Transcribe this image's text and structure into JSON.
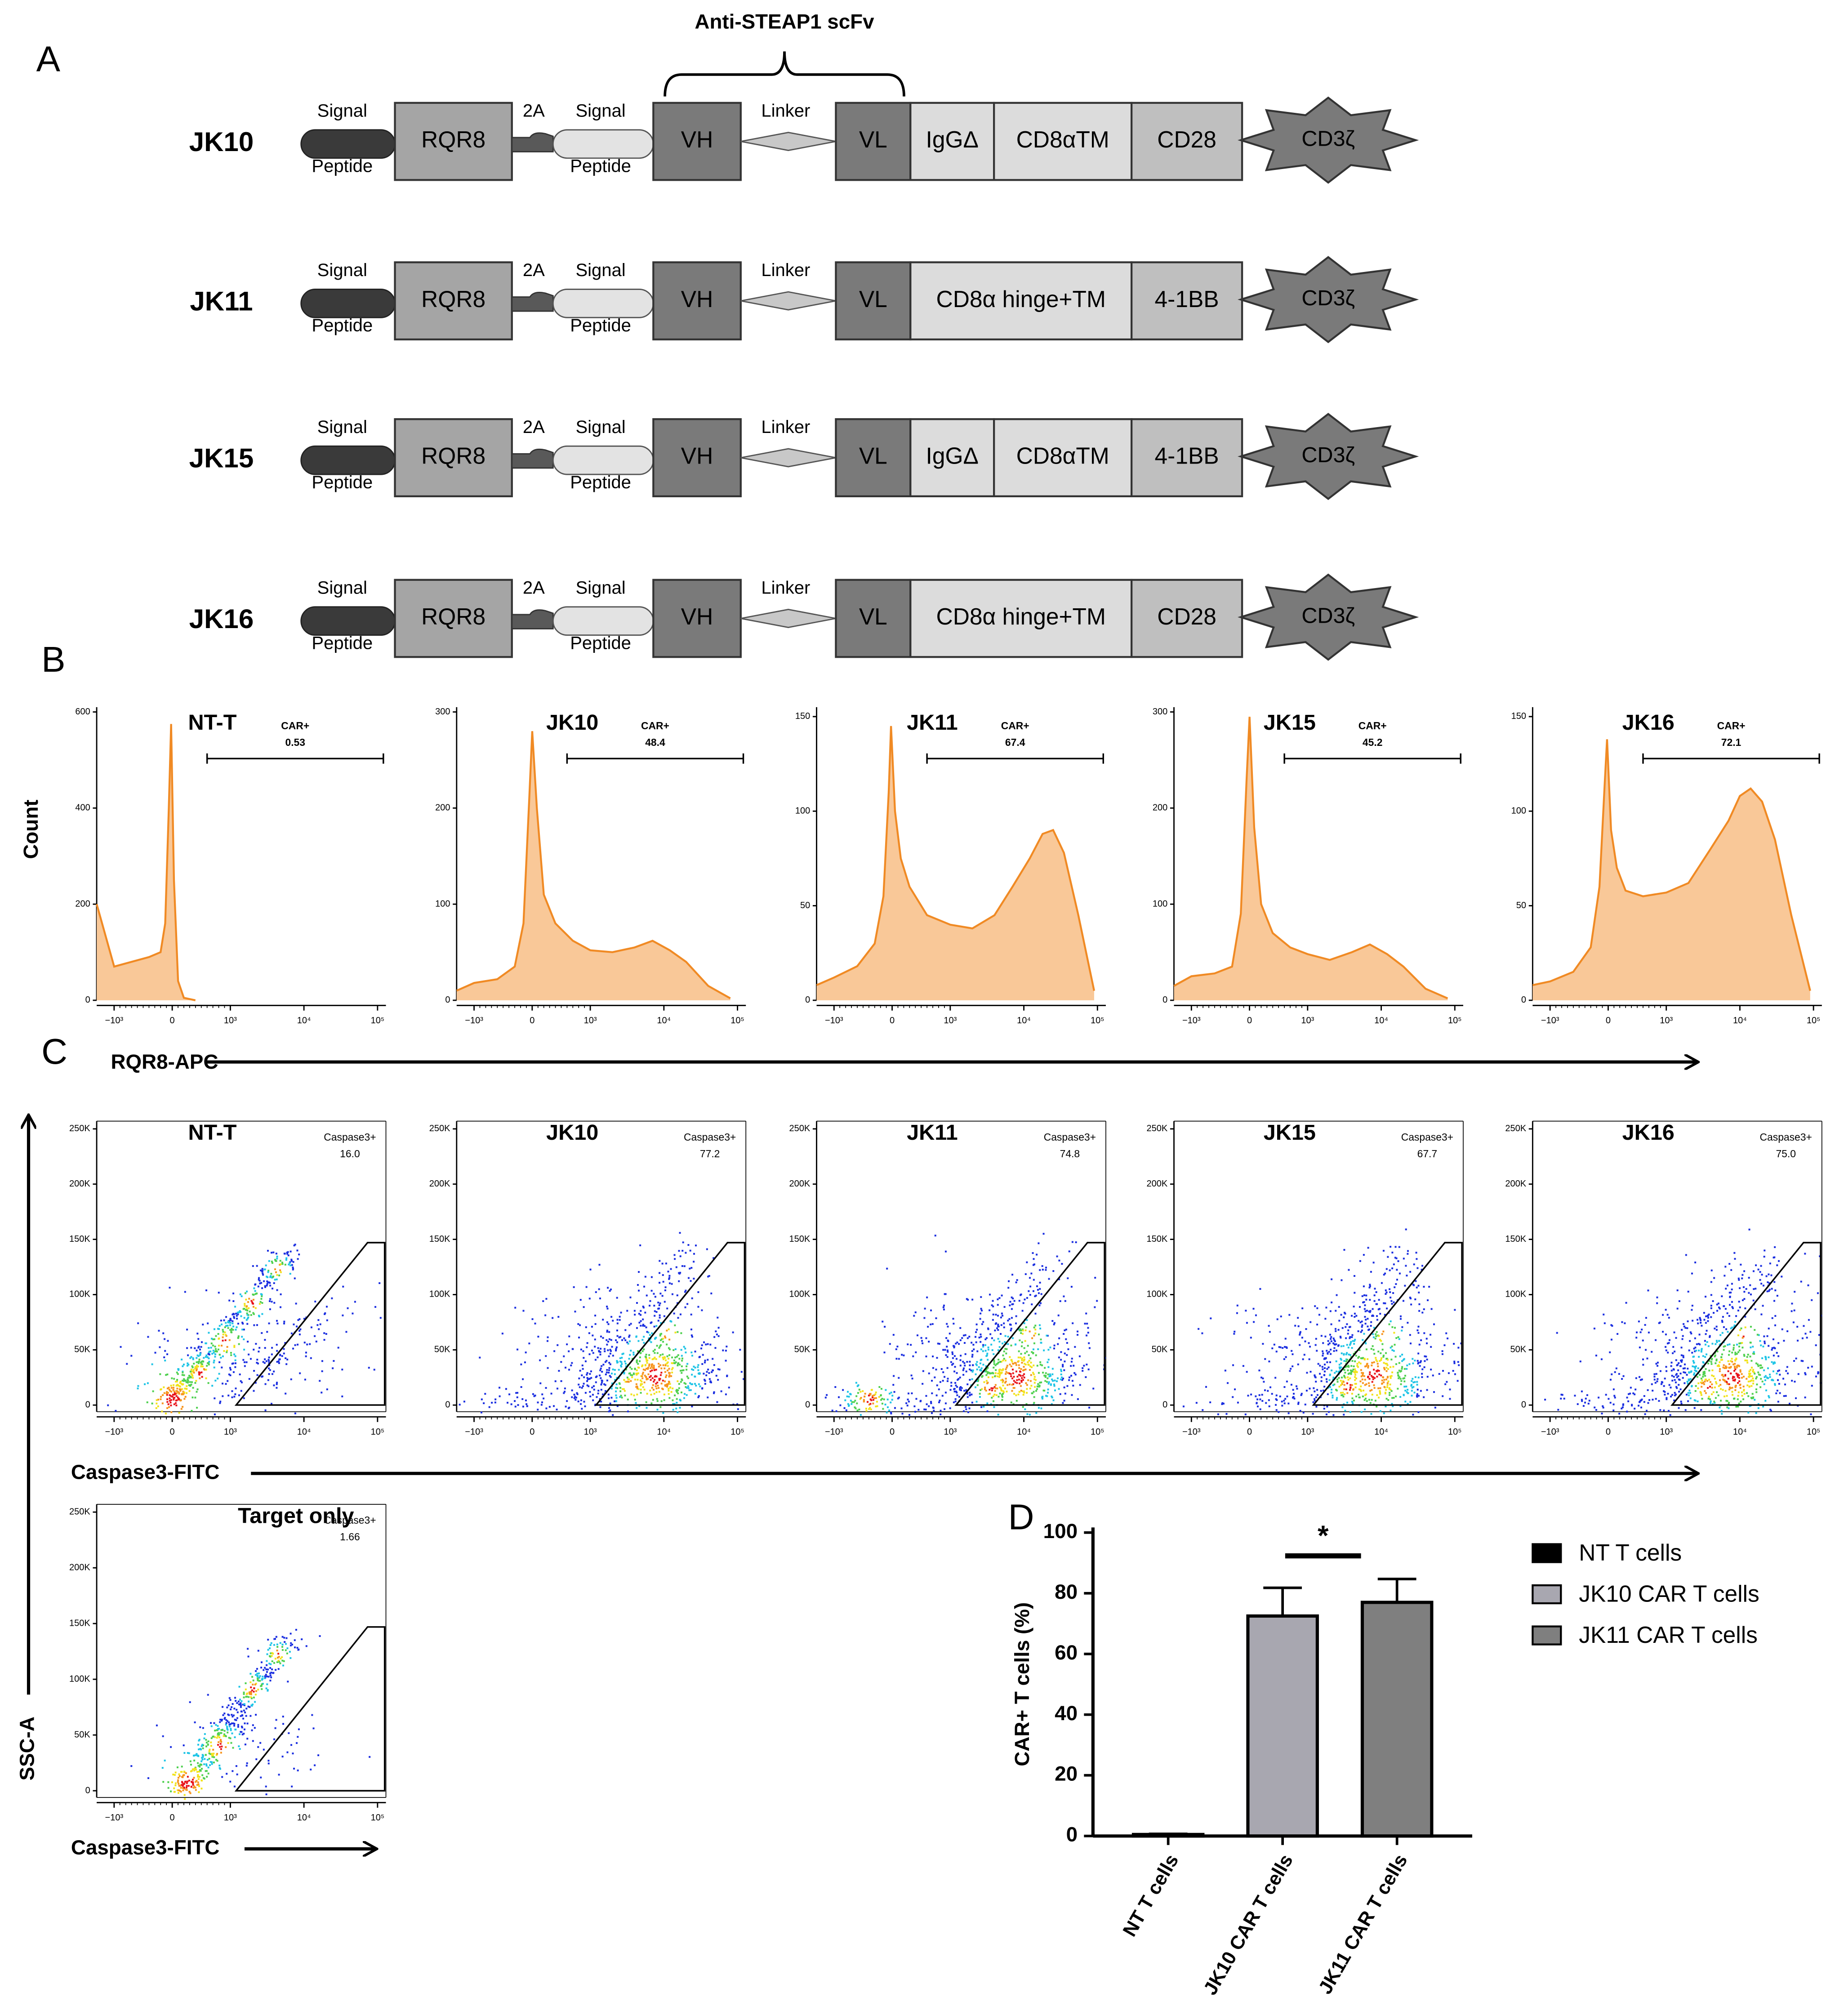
{
  "panel_labels": [
    "A",
    "B",
    "C",
    "D"
  ],
  "construct_diagram": {
    "scfv_label": "Anti-STEAP1 scFv",
    "constructs": [
      {
        "name": "JK10",
        "signal_peptide_1": [
          "Signal",
          "Peptide"
        ],
        "rqr8": "RQR8",
        "cleavage": "2A",
        "signal_peptide_2": [
          "Signal",
          "Peptide"
        ],
        "vh": "VH",
        "linker": "Linker",
        "vl": "VL",
        "hinge_tm": [
          "IgGΔ",
          "CD8αTM"
        ],
        "costim": "CD28",
        "cd3z": "CD3ζ"
      },
      {
        "name": "JK11",
        "signal_peptide_1": [
          "Signal",
          "Peptide"
        ],
        "rqr8": "RQR8",
        "cleavage": "2A",
        "signal_peptide_2": [
          "Signal",
          "Peptide"
        ],
        "vh": "VH",
        "linker": "Linker",
        "vl": "VL",
        "hinge_tm": [
          "CD8α hinge+TM"
        ],
        "costim": "4-1BB",
        "cd3z": "CD3ζ"
      },
      {
        "name": "JK15",
        "signal_peptide_1": [
          "Signal",
          "Peptide"
        ],
        "rqr8": "RQR8",
        "cleavage": "2A",
        "signal_peptide_2": [
          "Signal",
          "Peptide"
        ],
        "vh": "VH",
        "linker": "Linker",
        "vl": "VL",
        "hinge_tm": [
          "IgGΔ",
          "CD8αTM"
        ],
        "costim": "4-1BB",
        "cd3z": "CD3ζ"
      },
      {
        "name": "JK16",
        "signal_peptide_1": [
          "Signal",
          "Peptide"
        ],
        "rqr8": "RQR8",
        "cleavage": "2A",
        "signal_peptide_2": [
          "Signal",
          "Peptide"
        ],
        "vh": "VH",
        "linker": "Linker",
        "vl": "VL",
        "hinge_tm": [
          "CD8α hinge+TM"
        ],
        "costim": "CD28",
        "cd3z": "CD3ζ"
      }
    ]
  },
  "axis_titles": {
    "histogram_x": "RQR8-APC",
    "dot_x": "Caspase3-FITC",
    "dot_y": "SSC-A",
    "target_x": "Caspase3-FITC"
  },
  "chart_data": [
    {
      "type": "area",
      "title": "NT-T",
      "ylabel": "Count",
      "color": "#f9c898",
      "line_color": "#f08a24",
      "x": [
        -1300,
        -1000,
        -700,
        -400,
        -200,
        -120,
        -60,
        -20,
        30,
        100,
        200,
        400
      ],
      "values": [
        200,
        70,
        80,
        90,
        100,
        160,
        400,
        575,
        250,
        40,
        5,
        0
      ],
      "xlim": [
        -1300,
        130000
      ],
      "ylim": [
        0,
        610
      ],
      "yticks": [
        0,
        200,
        400,
        600
      ],
      "xticks": [
        {
          "value": -1000,
          "label": "−10³"
        },
        0,
        {
          "value": 1000,
          "label": "10³"
        },
        {
          "value": 10000,
          "label": "10⁴"
        },
        {
          "value": 100000,
          "label": "10⁵"
        }
      ],
      "gate": {
        "label": "CAR+",
        "value": 0.53,
        "x": [
          600,
          120000
        ]
      }
    },
    {
      "type": "area",
      "title": "JK10",
      "color": "#f9c898",
      "line_color": "#f08a24",
      "x": [
        -1300,
        -1000,
        -600,
        -300,
        -150,
        -50,
        0,
        80,
        200,
        400,
        700,
        1000,
        2000,
        4000,
        7000,
        12000,
        20000,
        40000,
        80000
      ],
      "values": [
        10,
        18,
        22,
        35,
        80,
        210,
        280,
        200,
        110,
        80,
        62,
        52,
        50,
        55,
        62,
        52,
        40,
        15,
        2
      ],
      "xlim": [
        -1300,
        130000
      ],
      "ylim": [
        0,
        305
      ],
      "yticks": [
        0,
        100,
        200,
        300
      ],
      "xticks": [
        {
          "value": -1000,
          "label": "−10³"
        },
        0,
        {
          "value": 1000,
          "label": "10³"
        },
        {
          "value": 10000,
          "label": "10⁴"
        },
        {
          "value": 100000,
          "label": "10⁵"
        }
      ],
      "gate": {
        "label": "CAR+",
        "value": 48.4,
        "x": [
          600,
          120000
        ]
      }
    },
    {
      "type": "area",
      "title": "JK11",
      "color": "#f9c898",
      "line_color": "#f08a24",
      "x": [
        -1300,
        -1000,
        -600,
        -300,
        -150,
        -60,
        -20,
        50,
        150,
        300,
        600,
        1000,
        2000,
        4000,
        7000,
        12000,
        18000,
        25000,
        35000,
        55000,
        90000
      ],
      "values": [
        8,
        12,
        18,
        30,
        55,
        110,
        145,
        100,
        75,
        60,
        45,
        40,
        38,
        45,
        60,
        75,
        88,
        90,
        78,
        45,
        5
      ],
      "xlim": [
        -1300,
        130000
      ],
      "ylim": [
        0,
        155
      ],
      "yticks": [
        0,
        50,
        100,
        150
      ],
      "xticks": [
        {
          "value": -1000,
          "label": "−10³"
        },
        0,
        {
          "value": 1000,
          "label": "10³"
        },
        {
          "value": 10000,
          "label": "10⁴"
        },
        {
          "value": 100000,
          "label": "10⁵"
        }
      ],
      "gate": {
        "label": "CAR+",
        "value": 67.4,
        "x": [
          600,
          120000
        ]
      }
    },
    {
      "type": "area",
      "title": "JK15",
      "color": "#f9c898",
      "line_color": "#f08a24",
      "x": [
        -1300,
        -1000,
        -600,
        -300,
        -150,
        -50,
        0,
        80,
        200,
        400,
        700,
        1000,
        2000,
        4000,
        7000,
        12000,
        20000,
        40000,
        80000
      ],
      "values": [
        15,
        25,
        28,
        35,
        90,
        230,
        295,
        180,
        100,
        70,
        55,
        48,
        42,
        50,
        58,
        48,
        35,
        12,
        2
      ],
      "xlim": [
        -1300,
        130000
      ],
      "ylim": [
        0,
        305
      ],
      "yticks": [
        0,
        100,
        200,
        300
      ],
      "xticks": [
        {
          "value": -1000,
          "label": "−10³"
        },
        0,
        {
          "value": 1000,
          "label": "10³"
        },
        {
          "value": 10000,
          "label": "10⁴"
        },
        {
          "value": 100000,
          "label": "10⁵"
        }
      ],
      "gate": {
        "label": "CAR+",
        "value": 45.2,
        "x": [
          600,
          120000
        ]
      }
    },
    {
      "type": "area",
      "title": "JK16",
      "color": "#f9c898",
      "line_color": "#f08a24",
      "x": [
        -1300,
        -1000,
        -600,
        -300,
        -150,
        -60,
        -20,
        50,
        150,
        300,
        600,
        1000,
        2000,
        4000,
        7000,
        10000,
        14000,
        20000,
        30000,
        50000,
        90000
      ],
      "values": [
        8,
        10,
        15,
        28,
        60,
        115,
        138,
        90,
        70,
        58,
        55,
        57,
        62,
        80,
        95,
        108,
        112,
        105,
        85,
        45,
        5
      ],
      "xlim": [
        -1300,
        130000
      ],
      "ylim": [
        0,
        155
      ],
      "yticks": [
        0,
        50,
        100,
        150
      ],
      "xticks": [
        {
          "value": -1000,
          "label": "−10³"
        },
        0,
        {
          "value": 1000,
          "label": "10³"
        },
        {
          "value": 10000,
          "label": "10⁴"
        },
        {
          "value": 100000,
          "label": "10⁵"
        }
      ],
      "gate": {
        "label": "CAR+",
        "value": 72.1,
        "x": [
          600,
          120000
        ]
      }
    },
    {
      "type": "density",
      "title": "NT-T",
      "xlim": [
        -1300,
        130000
      ],
      "ylim": [
        -6000,
        257000
      ],
      "xticks": [
        {
          "value": -1000,
          "label": "−10³"
        },
        0,
        {
          "value": 1000,
          "label": "10³"
        },
        {
          "value": 10000,
          "label": "10⁴"
        },
        {
          "value": 100000,
          "label": "10⁵"
        }
      ],
      "yticks": [
        0,
        {
          "value": 50000,
          "label": "50K"
        },
        {
          "value": 100000,
          "label": "100K"
        },
        {
          "value": 150000,
          "label": "150K"
        },
        {
          "value": 200000,
          "label": "200K"
        },
        {
          "value": 250000,
          "label": "250K"
        }
      ],
      "gate": {
        "label": "Caspase3+",
        "value": {
          "value": 16,
          "label": "16.0"
        },
        "x": [
          1200,
          73000,
          125000,
          125000
        ],
        "y": [
          0,
          147000,
          147000,
          0
        ]
      }
    },
    {
      "type": "density",
      "title": "JK10",
      "xlim": [
        -1300,
        130000
      ],
      "ylim": [
        -6000,
        257000
      ],
      "xticks": [
        {
          "value": -1000,
          "label": "−10³"
        },
        0,
        {
          "value": 1000,
          "label": "10³"
        },
        {
          "value": 10000,
          "label": "10⁴"
        },
        {
          "value": 100000,
          "label": "10⁵"
        }
      ],
      "yticks": [
        0,
        {
          "value": 50000,
          "label": "50K"
        },
        {
          "value": 100000,
          "label": "100K"
        },
        {
          "value": 150000,
          "label": "150K"
        },
        {
          "value": 200000,
          "label": "200K"
        },
        {
          "value": 250000,
          "label": "250K"
        }
      ],
      "gate": {
        "label": "Caspase3+",
        "value": 77.2,
        "x": [
          1200,
          73000,
          125000,
          125000
        ],
        "y": [
          0,
          147000,
          147000,
          0
        ]
      }
    },
    {
      "type": "density",
      "title": "JK11",
      "xlim": [
        -1300,
        130000
      ],
      "ylim": [
        -6000,
        257000
      ],
      "xticks": [
        {
          "value": -1000,
          "label": "−10³"
        },
        0,
        {
          "value": 1000,
          "label": "10³"
        },
        {
          "value": 10000,
          "label": "10⁴"
        },
        {
          "value": 100000,
          "label": "10⁵"
        }
      ],
      "yticks": [
        0,
        {
          "value": 50000,
          "label": "50K"
        },
        {
          "value": 100000,
          "label": "100K"
        },
        {
          "value": 150000,
          "label": "150K"
        },
        {
          "value": 200000,
          "label": "200K"
        },
        {
          "value": 250000,
          "label": "250K"
        }
      ],
      "gate": {
        "label": "Caspase3+",
        "value": 74.8,
        "x": [
          1200,
          73000,
          125000,
          125000
        ],
        "y": [
          0,
          147000,
          147000,
          0
        ]
      }
    },
    {
      "type": "density",
      "title": "JK15",
      "xlim": [
        -1300,
        130000
      ],
      "ylim": [
        -6000,
        257000
      ],
      "xticks": [
        {
          "value": -1000,
          "label": "−10³"
        },
        0,
        {
          "value": 1000,
          "label": "10³"
        },
        {
          "value": 10000,
          "label": "10⁴"
        },
        {
          "value": 100000,
          "label": "10⁵"
        }
      ],
      "yticks": [
        0,
        {
          "value": 50000,
          "label": "50K"
        },
        {
          "value": 100000,
          "label": "100K"
        },
        {
          "value": 150000,
          "label": "150K"
        },
        {
          "value": 200000,
          "label": "200K"
        },
        {
          "value": 250000,
          "label": "250K"
        }
      ],
      "gate": {
        "label": "Caspase3+",
        "value": 67.7,
        "x": [
          1200,
          73000,
          125000,
          125000
        ],
        "y": [
          0,
          147000,
          147000,
          0
        ]
      }
    },
    {
      "type": "density",
      "title": "JK16",
      "xlim": [
        -1300,
        130000
      ],
      "ylim": [
        -6000,
        257000
      ],
      "xticks": [
        {
          "value": -1000,
          "label": "−10³"
        },
        0,
        {
          "value": 1000,
          "label": "10³"
        },
        {
          "value": 10000,
          "label": "10⁴"
        },
        {
          "value": 100000,
          "label": "10⁵"
        }
      ],
      "yticks": [
        0,
        {
          "value": 50000,
          "label": "50K"
        },
        {
          "value": 100000,
          "label": "100K"
        },
        {
          "value": 150000,
          "label": "150K"
        },
        {
          "value": 200000,
          "label": "200K"
        },
        {
          "value": 250000,
          "label": "250K"
        }
      ],
      "gate": {
        "label": "Caspase3+",
        "value": {
          "value": 75,
          "label": "75.0"
        },
        "x": [
          1200,
          73000,
          125000,
          125000
        ],
        "y": [
          0,
          147000,
          147000,
          0
        ]
      }
    },
    {
      "type": "density",
      "title": "Target  only",
      "xlim": [
        -1300,
        130000
      ],
      "ylim": [
        -6000,
        257000
      ],
      "xticks": [
        {
          "value": -1000,
          "label": "−10³"
        },
        0,
        {
          "value": 1000,
          "label": "10³"
        },
        {
          "value": 10000,
          "label": "10⁴"
        },
        {
          "value": 100000,
          "label": "10⁵"
        }
      ],
      "yticks": [
        0,
        {
          "value": 50000,
          "label": "50K"
        },
        {
          "value": 100000,
          "label": "100K"
        },
        {
          "value": 150000,
          "label": "150K"
        },
        {
          "value": 200000,
          "label": "200K"
        },
        {
          "value": 250000,
          "label": "250K"
        }
      ],
      "gate": {
        "label": "Caspase3+",
        "value": 1.66,
        "x": [
          1200,
          73000,
          125000,
          125000
        ],
        "y": [
          0,
          147000,
          147000,
          0
        ]
      }
    },
    {
      "type": "bar",
      "ylabel": "CAR+ T cells (%)",
      "categories": [
        "NT T cells",
        "JK10 CAR T cells",
        "JK11 CAR T cells"
      ],
      "values": [
        0.5,
        72.5,
        77
      ],
      "errors": [
        0.2,
        9.3,
        7.7
      ],
      "colors": [
        "#000000",
        "#a8a7b0",
        "#7f7f7f"
      ],
      "ylim": [
        0,
        100
      ],
      "yticks": [
        0,
        20,
        40,
        60,
        80,
        100
      ],
      "significance": "*",
      "legend": true
    }
  ]
}
